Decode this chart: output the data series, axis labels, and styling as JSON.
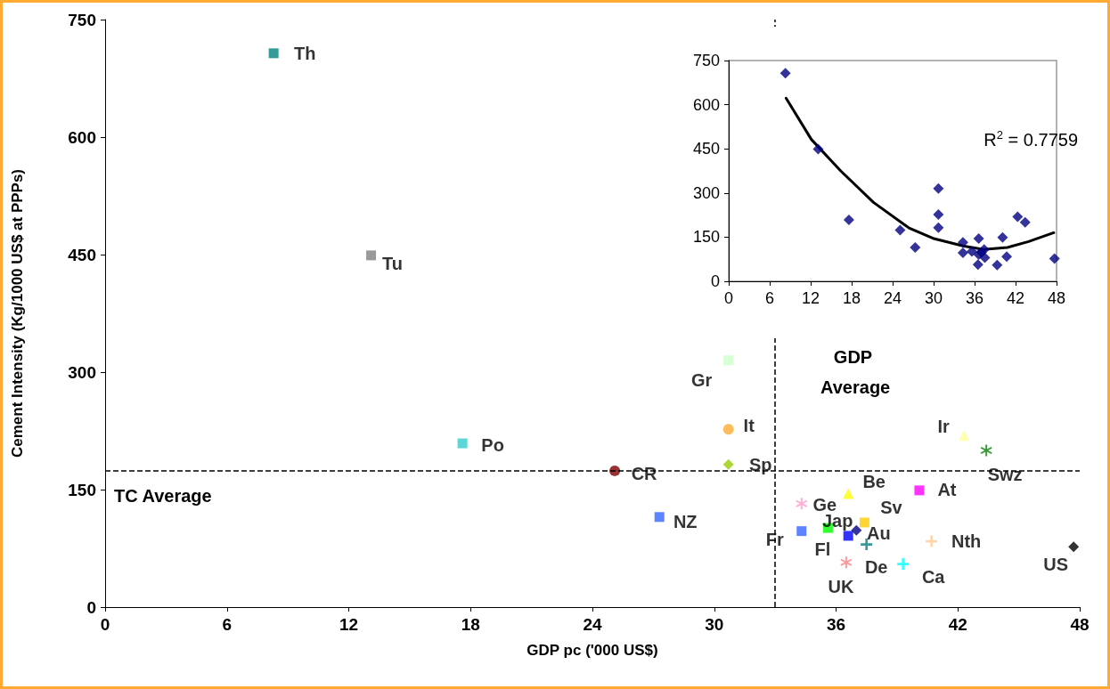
{
  "chart_data": [
    {
      "type": "scatter",
      "xlabel": "GDP pc ('000 US$)",
      "ylabel": "Cement Intensity (Kg/1000 US$ at PPPs)",
      "xlim": [
        0,
        48
      ],
      "xticks": [
        0,
        6,
        12,
        18,
        24,
        30,
        36,
        42,
        48
      ],
      "ylim": [
        0,
        750
      ],
      "yticks": [
        0,
        150,
        300,
        450,
        600,
        750
      ],
      "grid": false,
      "legend": false,
      "ref_lines": [
        {
          "axis": "x",
          "value": 33,
          "label": "GDP Average",
          "line_style": "dashed",
          "color": "#000000"
        },
        {
          "axis": "y",
          "value": 174,
          "label": "TC Average",
          "line_style": "dashed",
          "color": "#000000"
        }
      ],
      "series": [
        {
          "name": "Th",
          "color": "#008080",
          "marker": "square",
          "x": [
            8.3
          ],
          "values": [
            707
          ]
        },
        {
          "name": "Tu",
          "color": "#808080",
          "marker": "square",
          "x": [
            13.1
          ],
          "values": [
            449
          ]
        },
        {
          "name": "Po",
          "color": "#33cccc",
          "marker": "square",
          "x": [
            17.6
          ],
          "values": [
            209
          ]
        },
        {
          "name": "CR",
          "color": "#800000",
          "marker": "circle",
          "x": [
            25.1
          ],
          "values": [
            174
          ]
        },
        {
          "name": "NZ",
          "color": "#3366ff",
          "marker": "square",
          "x": [
            27.3
          ],
          "values": [
            115
          ]
        },
        {
          "name": "Gr",
          "color": "#ccffcc",
          "marker": "square",
          "x": [
            30.7
          ],
          "values": [
            315
          ]
        },
        {
          "name": "It",
          "color": "#ffaa33",
          "marker": "circle",
          "x": [
            30.7
          ],
          "values": [
            227
          ]
        },
        {
          "name": "Sp",
          "color": "#99cc00",
          "marker": "diamond",
          "x": [
            30.7
          ],
          "values": [
            182
          ]
        },
        {
          "name": "Jap",
          "color": "#0000ff",
          "marker": "square",
          "x": [
            36.6
          ],
          "values": [
            91
          ]
        },
        {
          "name": "Ge",
          "color": "#ff99cc",
          "marker": "star",
          "x": [
            34.3
          ],
          "values": [
            132
          ]
        },
        {
          "name": "Be",
          "color": "#ffff00",
          "marker": "triangle",
          "x": [
            36.6
          ],
          "values": [
            145
          ]
        },
        {
          "name": "At",
          "color": "#ff00ff",
          "marker": "square",
          "x": [
            40.1
          ],
          "values": [
            149
          ]
        },
        {
          "name": "Ir",
          "color": "#ffff99",
          "marker": "triangle",
          "x": [
            42.3
          ],
          "values": [
            219
          ]
        },
        {
          "name": "Swz",
          "color": "#008000",
          "marker": "star",
          "x": [
            43.4
          ],
          "values": [
            200
          ]
        },
        {
          "name": "Fr",
          "color": "#3366ff",
          "marker": "square",
          "x": [
            34.3
          ],
          "values": [
            97
          ]
        },
        {
          "name": "Fl",
          "color": "#00ff00",
          "marker": "square",
          "x": [
            35.6
          ],
          "values": [
            101
          ]
        },
        {
          "name": "Sv",
          "color": "#ffcc00",
          "marker": "square",
          "x": [
            37.4
          ],
          "values": [
            108
          ]
        },
        {
          "name": "Au",
          "color": "#000080",
          "marker": "diamond",
          "x": [
            37.0
          ],
          "values": [
            98
          ]
        },
        {
          "name": "De",
          "color": "#008080",
          "marker": "cross",
          "x": [
            37.5
          ],
          "values": [
            80
          ]
        },
        {
          "name": "UK",
          "color": "#ff8080",
          "marker": "star",
          "x": [
            36.5
          ],
          "values": [
            57
          ]
        },
        {
          "name": "Ca",
          "color": "#00ffff",
          "marker": "cross",
          "x": [
            39.3
          ],
          "values": [
            55
          ]
        },
        {
          "name": "Nth",
          "color": "#ffcc99",
          "marker": "cross",
          "x": [
            40.7
          ],
          "values": [
            84
          ]
        },
        {
          "name": "US",
          "color": "#000000",
          "marker": "diamond",
          "x": [
            47.7
          ],
          "values": [
            77
          ]
        }
      ]
    },
    {
      "type": "scatter",
      "xlim": [
        0,
        48
      ],
      "xticks": [
        0,
        6,
        12,
        18,
        24,
        30,
        36,
        42,
        48
      ],
      "ylim": [
        0,
        750
      ],
      "yticks": [
        0,
        150,
        300,
        450,
        600,
        750
      ],
      "grid": false,
      "legend": false,
      "annotations": [
        "R$^{2}$ = 0.7759"
      ],
      "series": [
        {
          "color": "#000080",
          "marker": "diamond",
          "x": [
            8.3,
            13.1,
            17.6,
            25.1,
            27.3,
            30.7,
            30.7,
            30.7,
            36.6,
            34.3,
            36.6,
            40.1,
            42.3,
            43.4,
            34.3,
            35.6,
            37.4,
            37.0,
            37.5,
            36.5,
            39.3,
            40.7,
            47.7
          ],
          "values": [
            707,
            449,
            209,
            174,
            115,
            315,
            227,
            182,
            91,
            132,
            145,
            149,
            219,
            200,
            97,
            101,
            108,
            98,
            80,
            57,
            55,
            84,
            77
          ]
        },
        {
          "type": "line",
          "color": "#000000",
          "marker": "none",
          "x": [
            8.4,
            12.1,
            16.4,
            21.2,
            26.4,
            29.9,
            34.3,
            37.3,
            40.8,
            43.9,
            47.6
          ],
          "values": [
            622,
            482,
            375,
            268,
            181,
            146,
            120,
            108,
            115,
            135,
            165
          ]
        }
      ]
    }
  ]
}
